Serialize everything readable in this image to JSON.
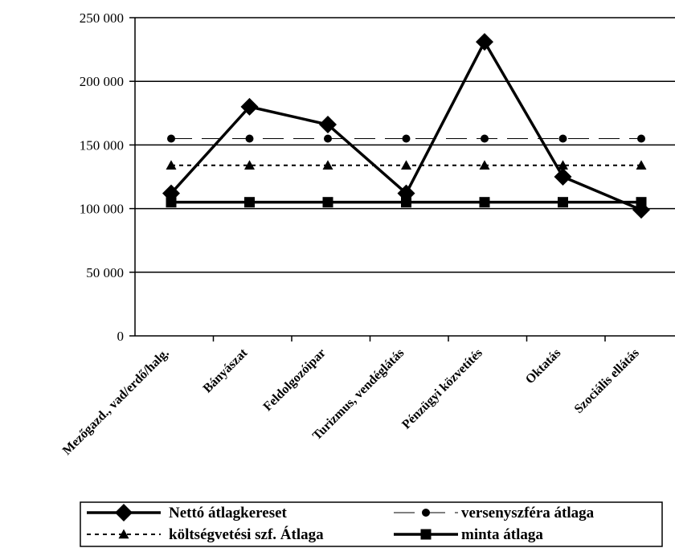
{
  "chart_data": {
    "type": "line",
    "categories": [
      "Mezőgazd., vad/erdő/halg.",
      "Bányászat",
      "Feldolgozóipar",
      "Turizmus, vendéglátás",
      "Pénzügyi közvetítés",
      "Oktatás",
      "Szociális ellátás"
    ],
    "ylim": [
      0,
      250000
    ],
    "yticks": [
      0,
      50000,
      100000,
      150000,
      200000,
      250000
    ],
    "ytick_labels": [
      "0",
      "50 000",
      "100 000",
      "150 000",
      "200 000",
      "250 000"
    ],
    "grid": "horizontal",
    "legend_position": "bottom",
    "series": [
      {
        "name": "Nettó átlagkereset",
        "marker": "diamond",
        "line": "solid-thick",
        "values": [
          112000,
          180000,
          166000,
          112000,
          231000,
          125000,
          99000
        ]
      },
      {
        "name": "versenyszféra átlaga",
        "marker": "circle",
        "line": "long-dash",
        "values": [
          155000,
          155000,
          155000,
          155000,
          155000,
          155000,
          155000
        ]
      },
      {
        "name": "költségvetési szf. Átlaga",
        "marker": "triangle",
        "line": "dotted",
        "values": [
          134000,
          134000,
          134000,
          134000,
          134000,
          134000,
          134000
        ]
      },
      {
        "name": "minta átlaga",
        "marker": "square",
        "line": "solid-thick",
        "values": [
          105000,
          105000,
          105000,
          105000,
          105000,
          105000,
          105000
        ]
      }
    ],
    "legend_order": [
      0,
      1,
      2,
      3
    ],
    "colors": {
      "line": "#000000",
      "background": "#ffffff"
    }
  }
}
